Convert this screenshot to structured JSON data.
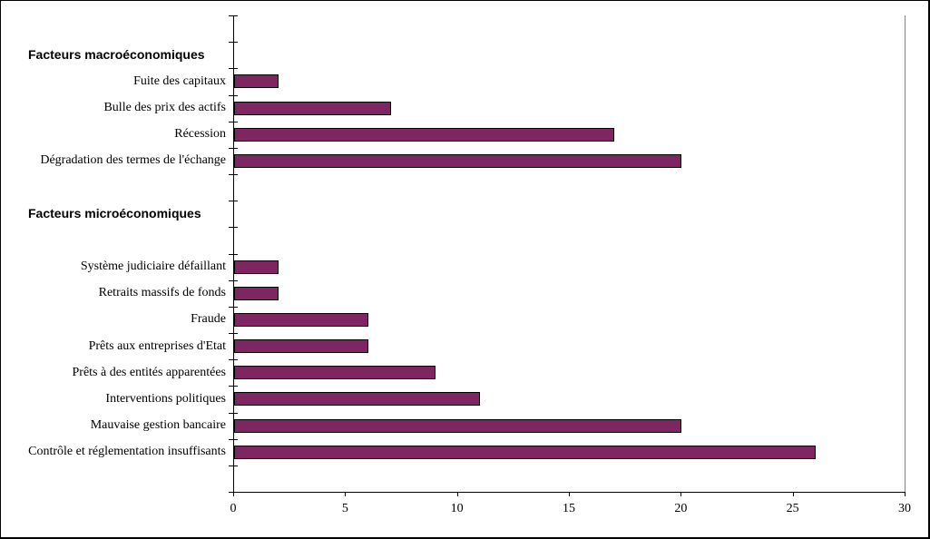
{
  "chart_data": {
    "type": "bar",
    "orientation": "horizontal",
    "title": "",
    "xlabel": "",
    "ylabel": "",
    "x_axis": {
      "min": 0,
      "max": 30,
      "ticks": [
        0,
        5,
        10,
        15,
        20,
        25,
        30
      ]
    },
    "grid": false,
    "legend": "none",
    "colors": {
      "bar_fill": "#7D2662",
      "bar_border": "#000000",
      "axis": "#000000",
      "plot_right_border": "#848284",
      "background": "#ffffff"
    },
    "rows": [
      {
        "kind": "spacer",
        "label": "",
        "value": null
      },
      {
        "kind": "header",
        "label": "Facteurs macroéconomiques",
        "value": null
      },
      {
        "kind": "bar",
        "label": "Fuite des capitaux",
        "value": 2
      },
      {
        "kind": "bar",
        "label": "Bulle des prix des actifs",
        "value": 7
      },
      {
        "kind": "bar",
        "label": "Récession",
        "value": 17
      },
      {
        "kind": "bar",
        "label": "Dégradation des termes de l'échange",
        "value": 20
      },
      {
        "kind": "spacer",
        "label": "",
        "value": null
      },
      {
        "kind": "header",
        "label": "Facteurs microéconomiques",
        "value": null
      },
      {
        "kind": "spacer",
        "label": "",
        "value": null
      },
      {
        "kind": "bar",
        "label": "Système judiciaire défaillant",
        "value": 2
      },
      {
        "kind": "bar",
        "label": "Retraits massifs de fonds",
        "value": 2
      },
      {
        "kind": "bar",
        "label": "Fraude",
        "value": 6
      },
      {
        "kind": "bar",
        "label": "Prêts aux entreprises d'Etat",
        "value": 6
      },
      {
        "kind": "bar",
        "label": "Prêts à des entités apparentées",
        "value": 9
      },
      {
        "kind": "bar",
        "label": "Interventions politiques",
        "value": 11
      },
      {
        "kind": "bar",
        "label": "Mauvaise gestion bancaire",
        "value": 20
      },
      {
        "kind": "bar",
        "label": "Contrôle et réglementation insuffisants",
        "value": 26
      },
      {
        "kind": "spacer",
        "label": "",
        "value": null
      }
    ]
  }
}
